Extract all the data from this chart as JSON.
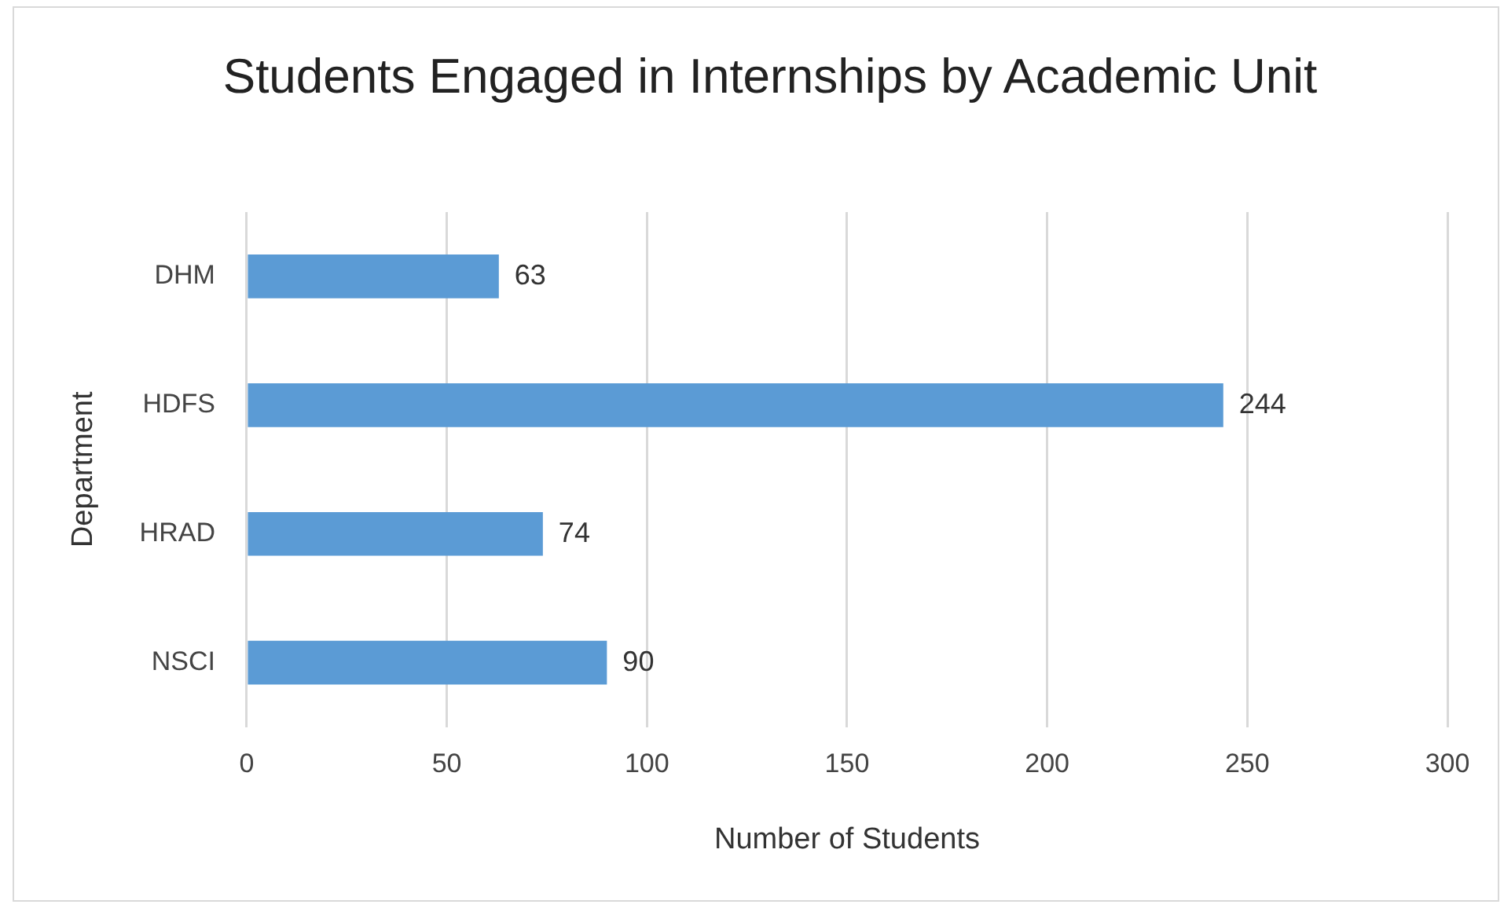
{
  "chart_data": {
    "type": "bar",
    "orientation": "horizontal",
    "title": "Students Engaged in Internships by Academic Unit",
    "categories": [
      "DHM",
      "HDFS",
      "HRAD",
      "NSCI"
    ],
    "values": [
      63,
      244,
      74,
      90
    ],
    "color": "#5b9bd5",
    "xlim": [
      0,
      300
    ],
    "xticks": [
      0,
      50,
      100,
      150,
      200,
      250,
      300
    ],
    "xlabel": "Number of Students",
    "ylabel": "Department",
    "grid": "x",
    "data_labels": true
  }
}
